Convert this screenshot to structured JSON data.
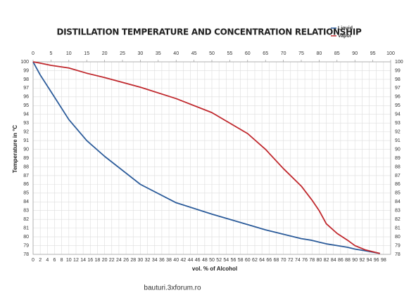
{
  "chart_data": {
    "type": "line",
    "title": "DISTILLATION TEMPERATURE AND CONCENTRATION RELATIONSHIP",
    "xlabel": "vol. % of Alcohol",
    "ylabel": "Temperature in °C",
    "watermark": "bauturi.3xforum.ro",
    "x": [
      0,
      2,
      5,
      10,
      15,
      20,
      30,
      40,
      50,
      60,
      65,
      70,
      75,
      78,
      80,
      82,
      85,
      88,
      90,
      93,
      97
    ],
    "series": [
      {
        "name": "Liquid",
        "color": "#2b5b9a",
        "values": [
          100,
          98.5,
          96.6,
          93.4,
          91.0,
          89.2,
          86.0,
          83.9,
          82.6,
          81.4,
          80.8,
          80.3,
          79.8,
          79.6,
          79.4,
          79.2,
          79.0,
          78.8,
          78.6,
          78.4,
          78.1
        ]
      },
      {
        "name": "Vapor",
        "color": "#c0282d",
        "values": [
          100,
          99.85,
          99.6,
          99.3,
          98.7,
          98.2,
          97.1,
          95.8,
          94.2,
          91.8,
          90.0,
          87.8,
          85.8,
          84.2,
          83.0,
          81.5,
          80.4,
          79.6,
          79.0,
          78.5,
          78.1
        ]
      }
    ],
    "xlim": [
      0,
      100
    ],
    "xticks": [
      0,
      2,
      4,
      6,
      8,
      10,
      12,
      14,
      16,
      18,
      20,
      22,
      24,
      26,
      28,
      30,
      32,
      34,
      36,
      38,
      40,
      42,
      44,
      46,
      48,
      50,
      52,
      54,
      56,
      58,
      60,
      62,
      64,
      66,
      68,
      70,
      72,
      74,
      76,
      78,
      80,
      82,
      84,
      86,
      88,
      90,
      92,
      94,
      96,
      98
    ],
    "x2ticks": [
      0,
      5,
      10,
      15,
      20,
      25,
      30,
      35,
      40,
      45,
      50,
      55,
      60,
      65,
      70,
      75,
      80,
      85,
      90,
      95,
      100
    ],
    "ylim": [
      78,
      100
    ],
    "yticks": [
      78,
      79,
      80,
      81,
      82,
      83,
      84,
      85,
      86,
      87,
      88,
      89,
      90,
      91,
      92,
      93,
      94,
      95,
      96,
      97,
      98,
      99,
      100
    ],
    "grid": true
  }
}
